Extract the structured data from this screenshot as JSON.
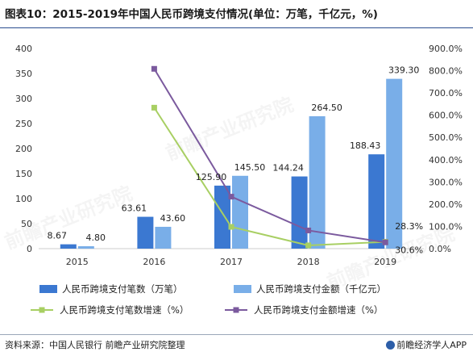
{
  "title": "图表10：2015-2019年中国人民币跨境支付情况(单位：万笔，千亿元，%)",
  "source": "资料来源：中国人民银行 前瞻产业研究院整理",
  "brand": "前瞻经济学人APP",
  "watermark": "前瞻产业研究院",
  "colors": {
    "bar_count": "#3b78d1",
    "bar_amount": "#79aee8",
    "line_count": "#a8cf63",
    "line_amount": "#7b5a9e",
    "axis": "#cccccc",
    "title_rule": "#2a4d8f"
  },
  "chart_data": {
    "type": "bar+line",
    "categories": [
      "2015",
      "2016",
      "2017",
      "2018",
      "2019"
    ],
    "y_left": {
      "min": 0,
      "max": 400,
      "step": 50,
      "ticks": [
        "0",
        "50",
        "100",
        "150",
        "200",
        "250",
        "300",
        "350",
        "400"
      ]
    },
    "y_right": {
      "min": 0,
      "max": 900,
      "step": 100,
      "ticks": [
        "0.0%",
        "100.0%",
        "200.0%",
        "300.0%",
        "400.0%",
        "500.0%",
        "600.0%",
        "700.0%",
        "800.0%",
        "900.0%"
      ]
    },
    "bars": [
      {
        "name": "人民币跨境支付笔数（万笔）",
        "values": [
          8.67,
          63.61,
          125.9,
          144.24,
          188.43
        ],
        "labels": [
          "8.67",
          "63.61",
          "125.90",
          "144.24",
          "188.43"
        ]
      },
      {
        "name": "人民币跨境支付金额（千亿元）",
        "values": [
          4.8,
          43.6,
          145.5,
          264.5,
          339.3
        ],
        "labels": [
          "4.80",
          "43.60",
          "145.50",
          "264.50",
          "339.30"
        ]
      }
    ],
    "lines": [
      {
        "name": "人民币跨境支付笔数增速（%）",
        "values": [
          null,
          633.7,
          97.9,
          14.6,
          30.6
        ],
        "end_label": "30.6%"
      },
      {
        "name": "人民币跨境支付金额增速（%）",
        "values": [
          null,
          808.3,
          233.7,
          81.8,
          28.3
        ],
        "end_label": "28.3%"
      }
    ],
    "legend_position": "bottom"
  }
}
